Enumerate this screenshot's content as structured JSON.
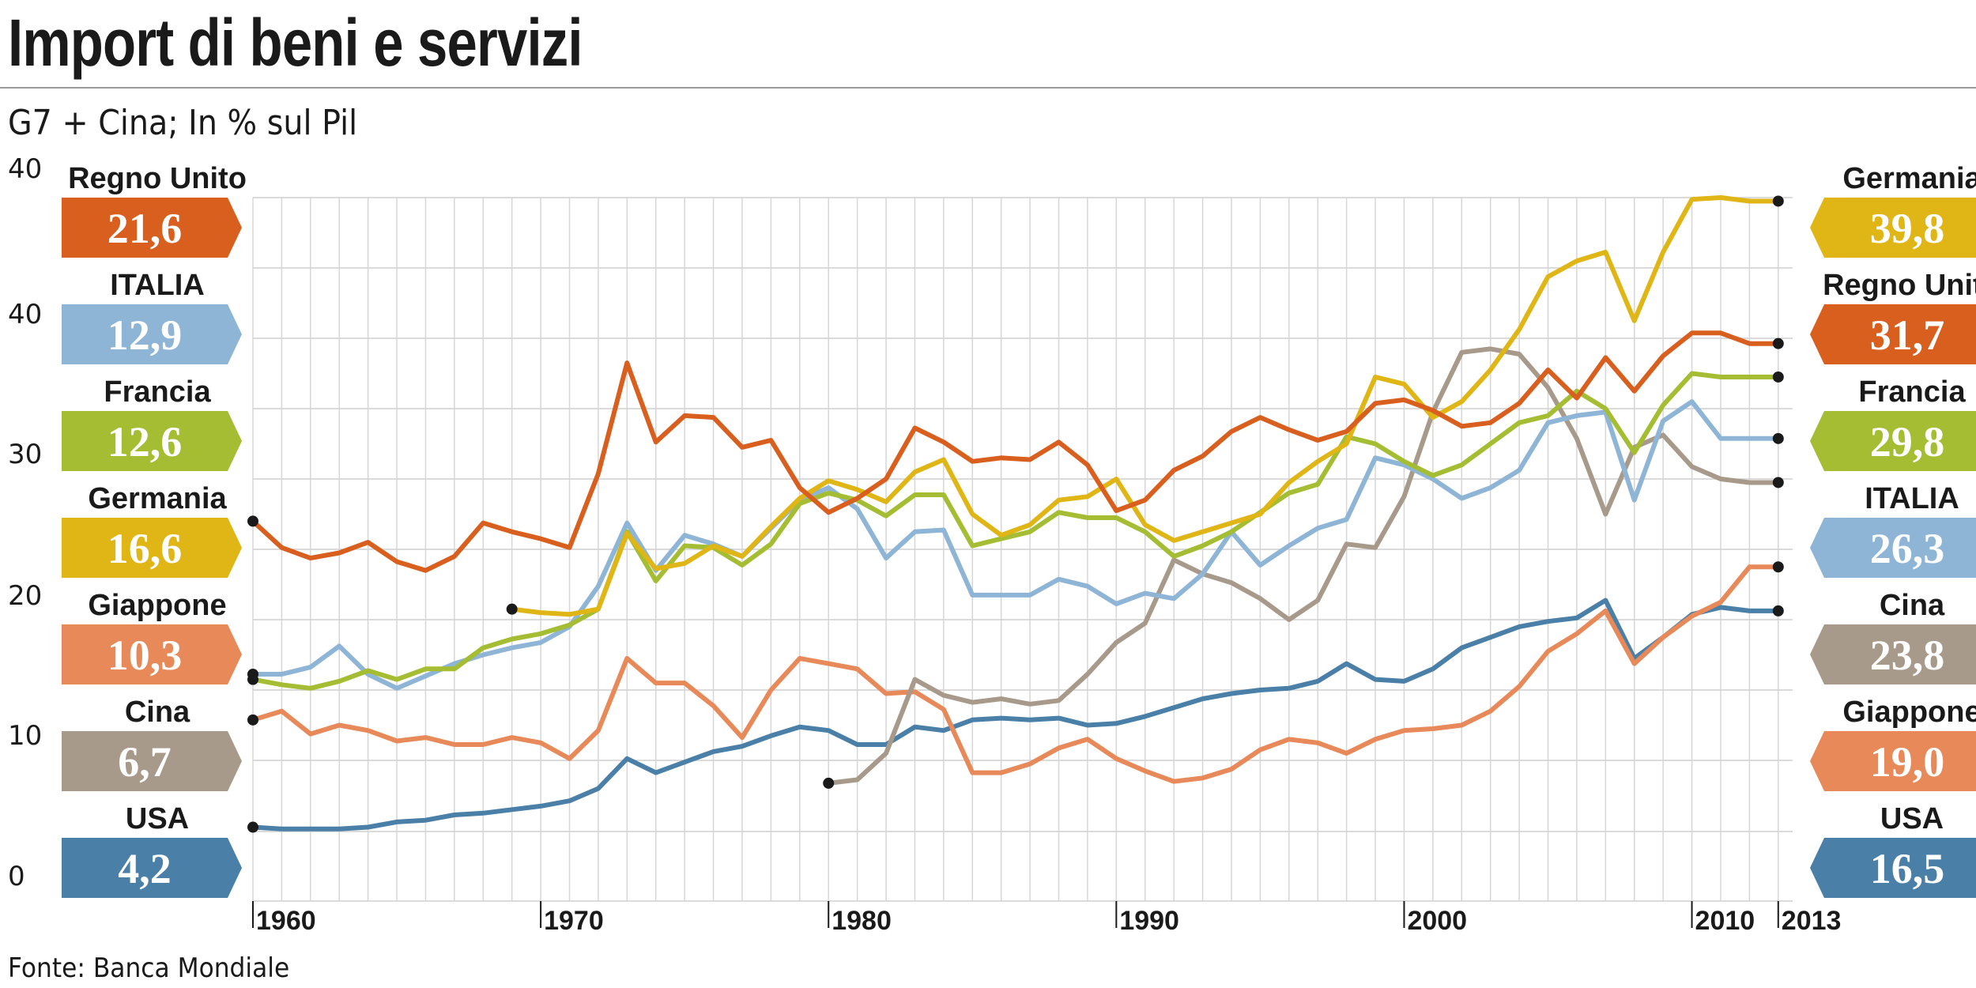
{
  "title": "Import di beni e servizi",
  "subtitle": "G7 + Cina; In % sul Pil",
  "source": "Fonte: Banca Mondiale",
  "chart_data": {
    "type": "line",
    "x": [
      1960,
      1961,
      1962,
      1963,
      1964,
      1965,
      1966,
      1967,
      1968,
      1969,
      1970,
      1971,
      1972,
      1973,
      1974,
      1975,
      1976,
      1977,
      1978,
      1979,
      1980,
      1981,
      1982,
      1983,
      1984,
      1985,
      1986,
      1987,
      1988,
      1989,
      1990,
      1991,
      1992,
      1993,
      1994,
      1995,
      1996,
      1997,
      1998,
      1999,
      2000,
      2001,
      2002,
      2003,
      2004,
      2005,
      2006,
      2007,
      2008,
      2009,
      2010,
      2011,
      2012,
      2013
    ],
    "ylim": [
      0,
      40
    ],
    "y_ticks": [
      "0",
      "10",
      "20",
      "30",
      "40",
      "40"
    ],
    "x_tick_labels": [
      {
        "x": 1960,
        "label": "1960"
      },
      {
        "x": 1970,
        "label": "1970"
      },
      {
        "x": 1980,
        "label": "1980"
      },
      {
        "x": 1990,
        "label": "1990"
      },
      {
        "x": 2000,
        "label": "2000"
      },
      {
        "x": 2010,
        "label": "2010"
      },
      {
        "x": 2013,
        "label": "2013"
      }
    ],
    "grid": true,
    "series": [
      {
        "name": "USA",
        "color": "#4a7fa8",
        "start": 1960,
        "start_label": "4,2",
        "end_label": "16,5",
        "values": [
          4.2,
          4.1,
          4.1,
          4.1,
          4.2,
          4.5,
          4.6,
          4.9,
          5.0,
          5.2,
          5.4,
          5.7,
          6.4,
          8.1,
          7.3,
          7.9,
          8.5,
          8.8,
          9.4,
          9.9,
          9.7,
          8.9,
          8.9,
          9.9,
          9.7,
          10.3,
          10.4,
          10.3,
          10.4,
          10.0,
          10.1,
          10.5,
          11.0,
          11.5,
          11.8,
          12.0,
          12.1,
          12.5,
          13.5,
          12.6,
          12.5,
          13.2,
          14.4,
          15.0,
          15.6,
          15.9,
          16.1,
          17.1,
          13.8,
          15.0,
          16.3,
          16.7,
          16.5,
          16.5
        ]
      },
      {
        "name": "Giappone",
        "color": "#e8895a",
        "start": 1960,
        "start_label": "10,3",
        "end_label": "19,0",
        "values": [
          10.3,
          10.8,
          9.5,
          10.0,
          9.7,
          9.1,
          9.3,
          8.9,
          8.9,
          9.3,
          9.0,
          8.1,
          9.7,
          13.8,
          12.4,
          12.4,
          11.1,
          9.3,
          12.0,
          13.8,
          13.5,
          13.2,
          11.8,
          11.9,
          10.9,
          7.3,
          7.3,
          7.8,
          8.7,
          9.2,
          8.1,
          7.4,
          6.8,
          7.0,
          7.5,
          8.6,
          9.2,
          9.0,
          8.4,
          9.2,
          9.7,
          9.8,
          10.0,
          10.8,
          12.2,
          14.2,
          15.2,
          16.5,
          13.5,
          15.0,
          16.2,
          17.0,
          19.0,
          19.0
        ]
      },
      {
        "name": "Cina",
        "color": "#a89a8a",
        "start": 1980,
        "start_label": "6,7",
        "end_label": "23,8",
        "values": [
          null,
          null,
          null,
          null,
          null,
          null,
          null,
          null,
          null,
          null,
          null,
          null,
          null,
          null,
          null,
          null,
          null,
          null,
          null,
          null,
          6.7,
          6.9,
          8.4,
          12.6,
          11.7,
          11.3,
          11.5,
          11.2,
          11.4,
          12.9,
          14.7,
          15.8,
          19.4,
          18.6,
          18.1,
          17.2,
          16.0,
          17.1,
          20.3,
          20.1,
          23.0,
          27.8,
          31.2,
          31.4,
          31.1,
          29.2,
          26.3,
          22.0,
          25.8,
          26.5,
          24.7,
          24.0,
          23.8,
          23.8
        ]
      },
      {
        "name": "ITALIA",
        "color": "#8fb5d6",
        "start": 1960,
        "start_label": "12,9",
        "end_label": "26,3",
        "values": [
          12.9,
          12.9,
          13.3,
          14.5,
          12.9,
          12.1,
          12.8,
          13.5,
          14.0,
          14.4,
          14.7,
          15.6,
          17.9,
          21.5,
          18.8,
          20.8,
          20.3,
          19.6,
          21.2,
          22.8,
          23.5,
          22.3,
          19.5,
          21.0,
          21.1,
          17.4,
          17.4,
          17.4,
          18.3,
          17.9,
          16.9,
          17.5,
          17.2,
          18.6,
          21.0,
          19.1,
          20.2,
          21.2,
          21.7,
          25.2,
          24.8,
          24.0,
          22.9,
          23.5,
          24.5,
          27.2,
          27.6,
          27.8,
          22.8,
          27.3,
          28.4,
          26.3,
          26.3,
          26.3
        ]
      },
      {
        "name": "Francia",
        "color": "#a4bd32",
        "start": 1960,
        "start_label": "12,6",
        "end_label": "29,8",
        "values": [
          12.6,
          12.3,
          12.1,
          12.5,
          13.1,
          12.6,
          13.2,
          13.2,
          14.4,
          14.9,
          15.2,
          15.7,
          16.6,
          21.0,
          18.2,
          20.2,
          20.1,
          19.1,
          20.3,
          22.6,
          23.2,
          22.8,
          21.9,
          23.1,
          23.1,
          20.2,
          20.6,
          21.0,
          22.1,
          21.8,
          21.8,
          21.0,
          19.6,
          20.2,
          21.0,
          22.1,
          23.2,
          23.7,
          26.4,
          26.0,
          25.0,
          24.2,
          24.8,
          26.0,
          27.2,
          27.6,
          29.0,
          28.0,
          25.5,
          28.2,
          30.0,
          29.8,
          29.8,
          29.8
        ]
      },
      {
        "name": "Germania",
        "color": "#e0b516",
        "start": 1969,
        "start_label": "16,6",
        "end_label": "39,8",
        "values": [
          null,
          null,
          null,
          null,
          null,
          null,
          null,
          null,
          null,
          16.6,
          16.4,
          16.3,
          16.6,
          20.9,
          18.9,
          19.2,
          20.2,
          19.6,
          21.3,
          22.9,
          23.9,
          23.4,
          22.7,
          24.4,
          25.1,
          22.0,
          20.8,
          21.4,
          22.8,
          23.0,
          24.0,
          21.4,
          20.5,
          21.0,
          21.5,
          22.0,
          23.8,
          25.0,
          26.0,
          29.8,
          29.4,
          27.5,
          28.4,
          30.2,
          32.5,
          35.5,
          36.4,
          36.9,
          33.0,
          36.9,
          39.9,
          40.0,
          39.8,
          39.8
        ]
      },
      {
        "name": "Regno Unito",
        "color": "#d95f1f",
        "start": 1960,
        "start_label": "21,6",
        "end_label": "31,7",
        "values": [
          21.6,
          20.1,
          19.5,
          19.8,
          20.4,
          19.3,
          18.8,
          19.6,
          21.5,
          21.0,
          20.6,
          20.1,
          24.3,
          30.6,
          26.1,
          27.6,
          27.5,
          25.8,
          26.2,
          23.5,
          22.1,
          22.9,
          24.0,
          26.9,
          26.1,
          25.0,
          25.2,
          25.1,
          26.1,
          24.8,
          22.2,
          22.8,
          24.5,
          25.3,
          26.7,
          27.5,
          26.8,
          26.2,
          26.7,
          28.3,
          28.5,
          27.9,
          27.0,
          27.2,
          28.3,
          30.2,
          28.6,
          30.9,
          29.0,
          31.0,
          32.3,
          32.3,
          31.7,
          31.7
        ]
      }
    ],
    "left_labels": [
      {
        "name": "Regno Unito",
        "value": "21,6",
        "color": "#d95f1f"
      },
      {
        "name": "ITALIA",
        "value": "12,9",
        "color": "#8fb5d6"
      },
      {
        "name": "Francia",
        "value": "12,6",
        "color": "#a4bd32"
      },
      {
        "name": "Germania",
        "value": "16,6",
        "color": "#e0b516"
      },
      {
        "name": "Giappone",
        "value": "10,3",
        "color": "#e8895a"
      },
      {
        "name": "Cina",
        "value": "6,7",
        "color": "#a89a8a"
      },
      {
        "name": "USA",
        "value": "4,2",
        "color": "#4a7fa8"
      }
    ],
    "right_labels": [
      {
        "name": "Germania",
        "value": "39,8",
        "color": "#e0b516"
      },
      {
        "name": "Regno Unito",
        "value": "31,7",
        "color": "#d95f1f"
      },
      {
        "name": "Francia",
        "value": "29,8",
        "color": "#a4bd32"
      },
      {
        "name": "ITALIA",
        "value": "26,3",
        "color": "#8fb5d6"
      },
      {
        "name": "Cina",
        "value": "23,8",
        "color": "#a89a8a"
      },
      {
        "name": "Giappone",
        "value": "19,0",
        "color": "#e8895a"
      },
      {
        "name": "USA",
        "value": "16,5",
        "color": "#4a7fa8"
      }
    ]
  }
}
